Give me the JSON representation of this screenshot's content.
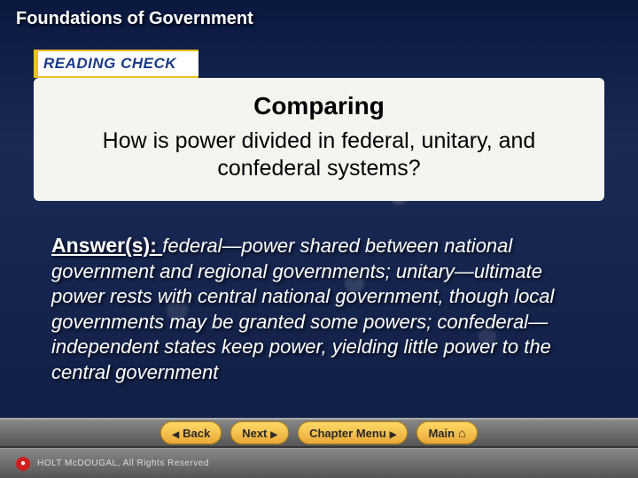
{
  "header": {
    "title": "Foundations of Government"
  },
  "readingCheck": {
    "label": "READING CHECK"
  },
  "question": {
    "heading": "Comparing",
    "text": "How is power divided in federal, unitary, and confederal systems?"
  },
  "answer": {
    "label": "Answer(s): ",
    "text": "federal—power shared between national government and regional governments; unitary—ultimate power rests with central national government, though local governments may be granted some powers; confederal—independent states keep power, yielding little power to the central government"
  },
  "nav": {
    "back": "Back",
    "next": "Next",
    "chapterMenu": "Chapter Menu",
    "main": "Main"
  },
  "footer": {
    "publisher": "HOLT McDOUGAL",
    "rights": ", All Rights Reserved"
  }
}
